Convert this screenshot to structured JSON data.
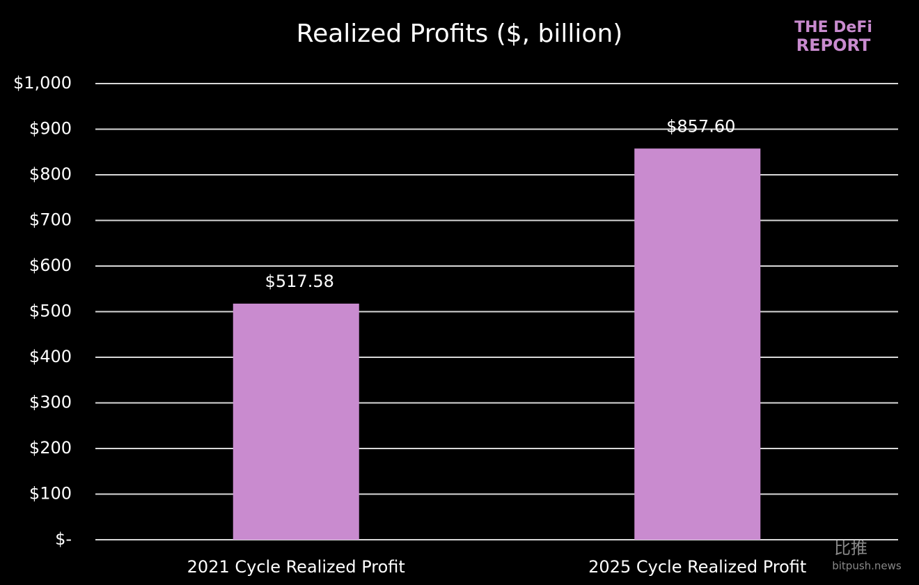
{
  "chart_data": {
    "type": "bar",
    "title": "Realized Profits ($, billion)",
    "categories": [
      "2021 Cycle Realized Profit",
      "2025 Cycle Realized Profit"
    ],
    "values": [
      517.58,
      857.6
    ],
    "value_labels": [
      "$517.58",
      "$857.60"
    ],
    "color": "#c98bcf",
    "ylim": [
      0,
      1000
    ],
    "yticks": [
      {
        "value": 0,
        "label": "$-"
      },
      {
        "value": 100,
        "label": "$100"
      },
      {
        "value": 200,
        "label": "$200"
      },
      {
        "value": 300,
        "label": "$300"
      },
      {
        "value": 400,
        "label": "$400"
      },
      {
        "value": 500,
        "label": "$500"
      },
      {
        "value": 600,
        "label": "$600"
      },
      {
        "value": 700,
        "label": "$700"
      },
      {
        "value": 800,
        "label": "$800"
      },
      {
        "value": 900,
        "label": "$900"
      },
      {
        "value": 1000,
        "label": "$1,000"
      }
    ],
    "grid": true
  },
  "logo": {
    "line1": "THE DeFi",
    "line2": "REPORT"
  },
  "watermark": {
    "name": "比推",
    "site": "bitpush.news"
  }
}
